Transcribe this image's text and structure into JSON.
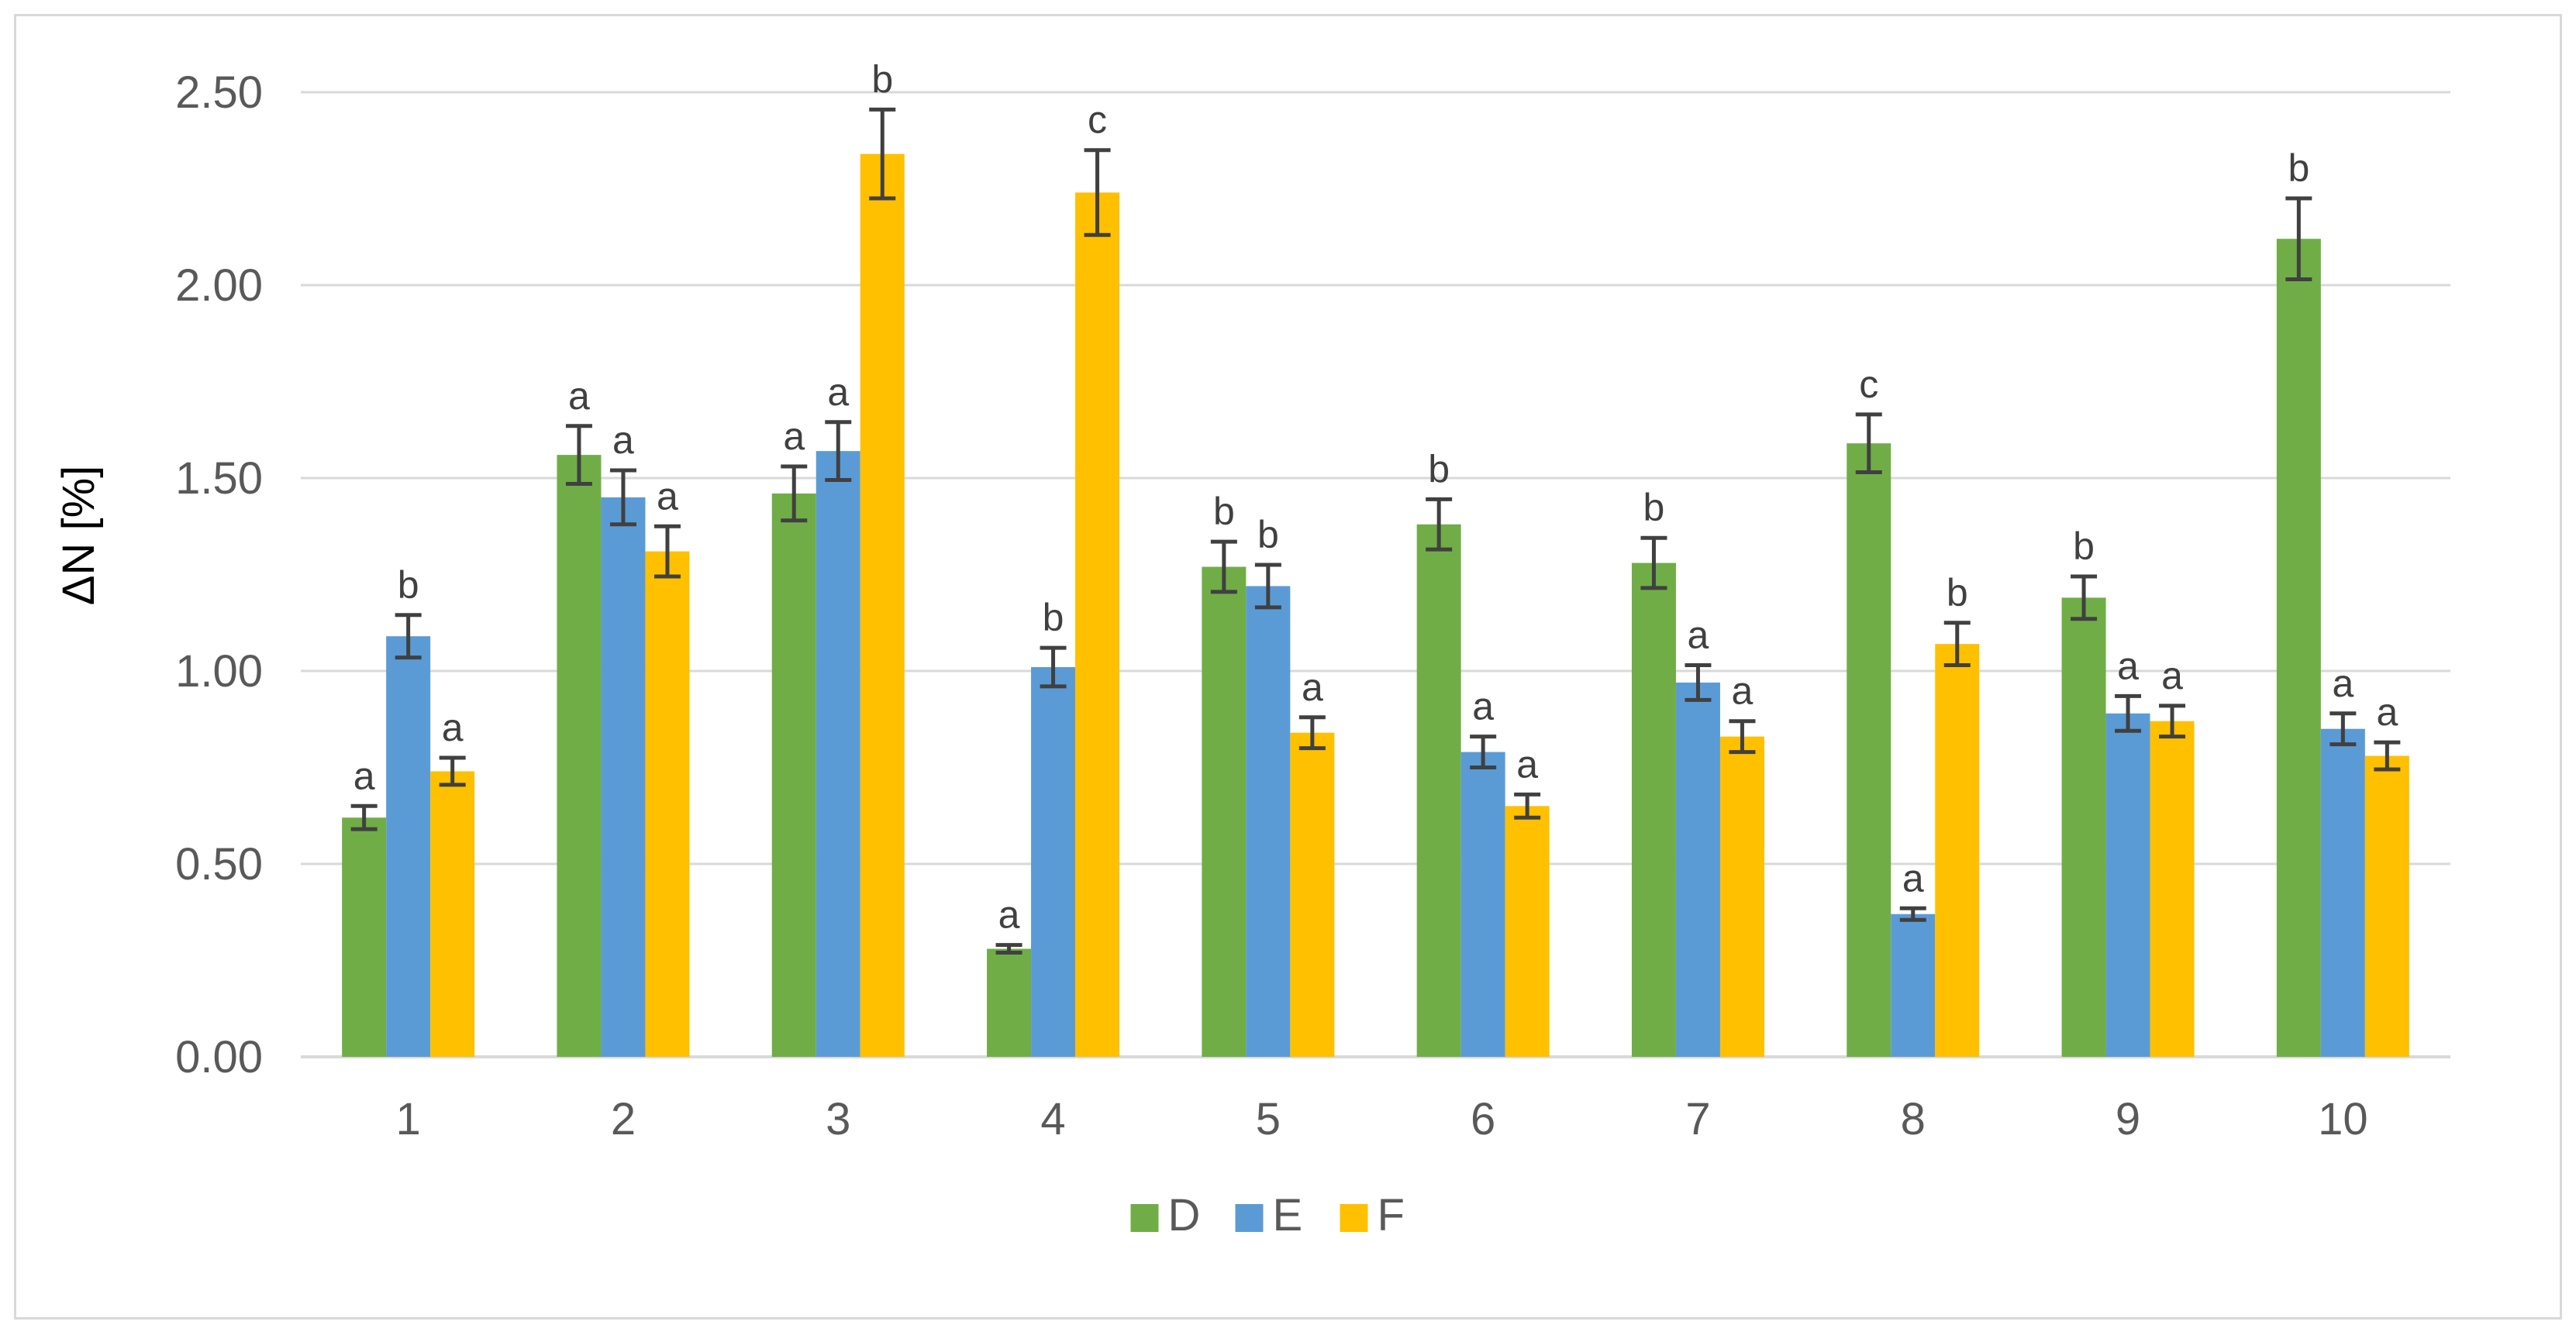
{
  "chart_data": {
    "type": "bar",
    "title": "",
    "xlabel": "",
    "ylabel": "ΔN [%]",
    "ylim": [
      0,
      2.5
    ],
    "y_ticks": [
      "0.00",
      "0.50",
      "1.00",
      "1.50",
      "2.00",
      "2.50"
    ],
    "grid": true,
    "legend_position": "bottom",
    "categories": [
      "1",
      "2",
      "3",
      "4",
      "5",
      "6",
      "7",
      "8",
      "9",
      "10"
    ],
    "series": [
      {
        "name": "D",
        "color": "#70ad47",
        "values": [
          0.62,
          1.56,
          1.46,
          0.28,
          1.27,
          1.38,
          1.28,
          1.59,
          1.19,
          2.12
        ],
        "errors": [
          0.03,
          0.075,
          0.07,
          0.01,
          0.065,
          0.065,
          0.065,
          0.075,
          0.055,
          0.105
        ],
        "labels": [
          "a",
          "a",
          "a",
          "a",
          "b",
          "b",
          "b",
          "c",
          "b",
          "b"
        ]
      },
      {
        "name": "E",
        "color": "#5b9bd5",
        "values": [
          1.09,
          1.45,
          1.57,
          1.01,
          1.22,
          0.79,
          0.97,
          0.37,
          0.89,
          0.85
        ],
        "errors": [
          0.055,
          0.07,
          0.075,
          0.05,
          0.055,
          0.04,
          0.045,
          0.015,
          0.045,
          0.04
        ],
        "labels": [
          "b",
          "a",
          "a",
          "b",
          "b",
          "a",
          "a",
          "a",
          "a",
          "a"
        ]
      },
      {
        "name": "F",
        "color": "#ffc000",
        "values": [
          0.74,
          1.31,
          2.34,
          2.24,
          0.84,
          0.65,
          0.83,
          1.07,
          0.87,
          0.78
        ],
        "errors": [
          0.035,
          0.065,
          0.115,
          0.11,
          0.04,
          0.03,
          0.04,
          0.055,
          0.04,
          0.035
        ],
        "labels": [
          "a",
          "a",
          "b",
          "c",
          "a",
          "a",
          "a",
          "b",
          "a",
          "a"
        ]
      }
    ]
  }
}
